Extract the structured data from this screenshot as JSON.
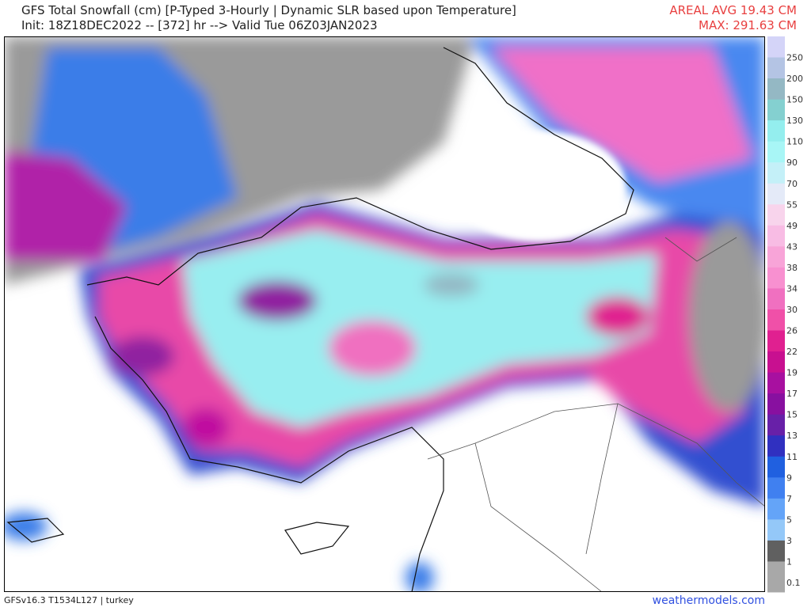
{
  "header": {
    "title": "GFS Total Snowfall (cm) [P-Typed 3-Hourly | Dynamic SLR based upon Temperature]",
    "init": "Init: 18Z18DEC2022 -- [372] hr --> Valid Tue 06Z03JAN2023",
    "areal_avg": "AREAL AVG 19.43 CM",
    "max": "MAX: 291.63 CM"
  },
  "colorbar": {
    "labels": [
      "250",
      "200",
      "150",
      "130",
      "110",
      "90",
      "70",
      "55",
      "49",
      "43",
      "38",
      "34",
      "30",
      "26",
      "22",
      "19",
      "17",
      "15",
      "13",
      "11",
      "9",
      "7",
      "5",
      "3",
      "1",
      "0.1"
    ],
    "colors": [
      "#d4d4f8",
      "#b4c4e4",
      "#94b8c4",
      "#84d0d0",
      "#94eeee",
      "#a8f6f6",
      "#c4f0f8",
      "#e4eaf8",
      "#f8d4ec",
      "#f8bce4",
      "#f8a4d8",
      "#f890d0",
      "#f070c0",
      "#f050a8",
      "#e02090",
      "#c81090",
      "#a810a0",
      "#8810a0",
      "#6820a8",
      "#3030c0",
      "#2060e0",
      "#4080f0",
      "#64a4f8",
      "#94c8f8",
      "#606060",
      "#a8a8a8"
    ]
  },
  "footer": {
    "model": "GFSv16.3 T1534L127 | turkey",
    "source": "weathermodels.com"
  }
}
